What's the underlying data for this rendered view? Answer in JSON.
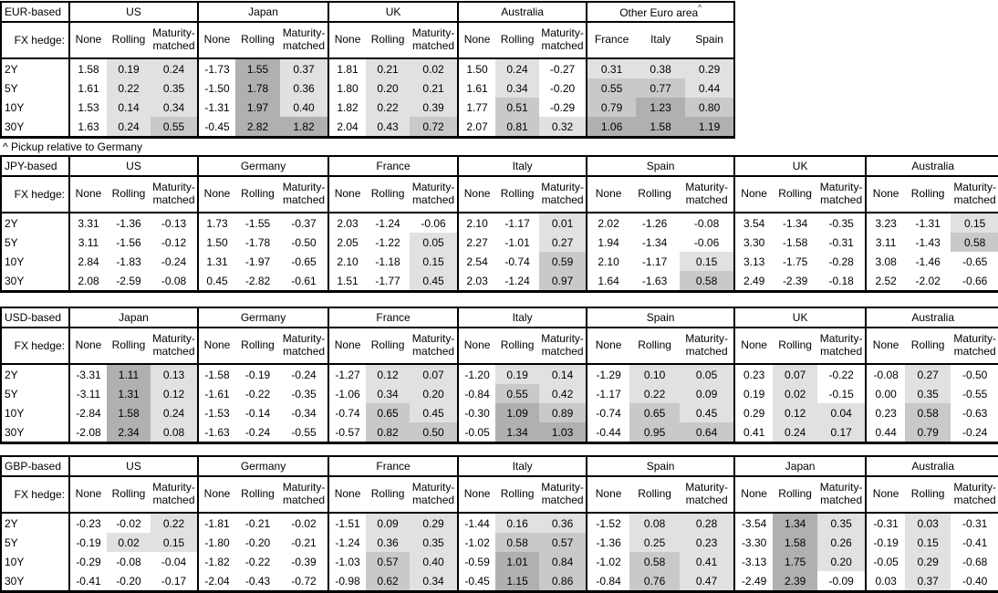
{
  "footnote": "^ Pickup relative to Germany",
  "fx_hedge_label": "FX hedge:",
  "hedge_cols": [
    "None",
    "Rolling",
    "Maturity-matched"
  ],
  "tenors": [
    "2Y",
    "5Y",
    "10Y",
    "30Y"
  ],
  "heat_colors": {
    "none": "#ffffff",
    "low": "#e1e1e1",
    "mid": "#c9c9c9",
    "high": "#b0b0b0"
  },
  "tables": [
    {
      "label": "EUR-based",
      "groups": [
        {
          "name": "US",
          "rows": [
            [
              1.58,
              0.19,
              0.24
            ],
            [
              1.61,
              0.22,
              0.35
            ],
            [
              1.53,
              0.14,
              0.34
            ],
            [
              1.63,
              0.24,
              0.55
            ]
          ]
        },
        {
          "name": "Japan",
          "rows": [
            [
              -1.73,
              1.55,
              0.37
            ],
            [
              -1.5,
              1.78,
              0.36
            ],
            [
              -1.31,
              1.97,
              0.4
            ],
            [
              -0.45,
              2.82,
              1.82
            ]
          ]
        },
        {
          "name": "UK",
          "rows": [
            [
              1.81,
              0.21,
              0.02
            ],
            [
              1.8,
              0.2,
              0.21
            ],
            [
              1.82,
              0.22,
              0.39
            ],
            [
              2.04,
              0.43,
              0.72
            ]
          ]
        },
        {
          "name": "Australia",
          "rows": [
            [
              1.5,
              0.24,
              -0.27
            ],
            [
              1.61,
              0.34,
              -0.2
            ],
            [
              1.77,
              0.51,
              -0.29
            ],
            [
              2.07,
              0.81,
              0.32
            ]
          ]
        },
        {
          "name": "Other Euro area",
          "sup": "^",
          "cols": [
            "France",
            "Italy",
            "Spain"
          ],
          "shade_all": true,
          "rows": [
            [
              0.31,
              0.38,
              0.29
            ],
            [
              0.55,
              0.77,
              0.44
            ],
            [
              0.79,
              1.23,
              0.8
            ],
            [
              1.06,
              1.58,
              1.19
            ]
          ]
        }
      ]
    },
    {
      "label": "JPY-based",
      "groups": [
        {
          "name": "US",
          "rows": [
            [
              3.31,
              -1.36,
              -0.13
            ],
            [
              3.11,
              -1.56,
              -0.12
            ],
            [
              2.84,
              -1.83,
              -0.24
            ],
            [
              2.08,
              -2.59,
              -0.08
            ]
          ]
        },
        {
          "name": "Germany",
          "rows": [
            [
              1.73,
              -1.55,
              -0.37
            ],
            [
              1.5,
              -1.78,
              -0.5
            ],
            [
              1.31,
              -1.97,
              -0.65
            ],
            [
              0.45,
              -2.82,
              -0.61
            ]
          ]
        },
        {
          "name": "France",
          "rows": [
            [
              2.03,
              -1.24,
              -0.06
            ],
            [
              2.05,
              -1.22,
              0.05
            ],
            [
              2.1,
              -1.18,
              0.15
            ],
            [
              1.51,
              -1.77,
              0.45
            ]
          ]
        },
        {
          "name": "Italy",
          "rows": [
            [
              2.1,
              -1.17,
              0.01
            ],
            [
              2.27,
              -1.01,
              0.27
            ],
            [
              2.54,
              -0.74,
              0.59
            ],
            [
              2.03,
              -1.24,
              0.97
            ]
          ]
        },
        {
          "name": "Spain",
          "rows": [
            [
              2.02,
              -1.26,
              -0.08
            ],
            [
              1.94,
              -1.34,
              -0.06
            ],
            [
              2.1,
              -1.17,
              0.15
            ],
            [
              1.64,
              -1.63,
              0.58
            ]
          ]
        },
        {
          "name": "UK",
          "rows": [
            [
              3.54,
              -1.34,
              -0.35
            ],
            [
              3.3,
              -1.58,
              -0.31
            ],
            [
              3.13,
              -1.75,
              -0.28
            ],
            [
              2.49,
              -2.39,
              -0.18
            ]
          ]
        },
        {
          "name": "Australia",
          "rows": [
            [
              3.23,
              -1.31,
              0.15
            ],
            [
              3.11,
              -1.43,
              0.58
            ],
            [
              3.08,
              -1.46,
              -0.65
            ],
            [
              2.52,
              -2.02,
              -0.66
            ]
          ]
        }
      ]
    },
    {
      "label": "USD-based",
      "groups": [
        {
          "name": "Japan",
          "rows": [
            [
              -3.31,
              1.11,
              0.13
            ],
            [
              -3.11,
              1.31,
              0.12
            ],
            [
              -2.84,
              1.58,
              0.24
            ],
            [
              -2.08,
              2.34,
              0.08
            ]
          ]
        },
        {
          "name": "Germany",
          "rows": [
            [
              -1.58,
              -0.19,
              -0.24
            ],
            [
              -1.61,
              -0.22,
              -0.35
            ],
            [
              -1.53,
              -0.14,
              -0.34
            ],
            [
              -1.63,
              -0.24,
              -0.55
            ]
          ]
        },
        {
          "name": "France",
          "rows": [
            [
              -1.27,
              0.12,
              0.07
            ],
            [
              -1.06,
              0.34,
              0.2
            ],
            [
              -0.74,
              0.65,
              0.45
            ],
            [
              -0.57,
              0.82,
              0.5
            ]
          ]
        },
        {
          "name": "Italy",
          "rows": [
            [
              -1.2,
              0.19,
              0.14
            ],
            [
              -0.84,
              0.55,
              0.42
            ],
            [
              -0.3,
              1.09,
              0.89
            ],
            [
              -0.05,
              1.34,
              1.03
            ]
          ]
        },
        {
          "name": "Spain",
          "rows": [
            [
              -1.29,
              0.1,
              0.05
            ],
            [
              -1.17,
              0.22,
              0.09
            ],
            [
              -0.74,
              0.65,
              0.45
            ],
            [
              -0.44,
              0.95,
              0.64
            ]
          ]
        },
        {
          "name": "UK",
          "rows": [
            [
              0.23,
              0.07,
              -0.22
            ],
            [
              0.19,
              0.02,
              -0.15
            ],
            [
              0.29,
              0.12,
              0.04
            ],
            [
              0.41,
              0.24,
              0.17
            ]
          ]
        },
        {
          "name": "Australia",
          "rows": [
            [
              -0.08,
              0.27,
              -0.5
            ],
            [
              0.0,
              0.35,
              -0.55
            ],
            [
              0.23,
              0.58,
              -0.63
            ],
            [
              0.44,
              0.79,
              -0.24
            ]
          ]
        }
      ]
    },
    {
      "label": "GBP-based",
      "groups": [
        {
          "name": "US",
          "rows": [
            [
              -0.23,
              -0.02,
              0.22
            ],
            [
              -0.19,
              0.02,
              0.15
            ],
            [
              -0.29,
              -0.08,
              -0.04
            ],
            [
              -0.41,
              -0.2,
              -0.17
            ]
          ]
        },
        {
          "name": "Germany",
          "rows": [
            [
              -1.81,
              -0.21,
              -0.02
            ],
            [
              -1.8,
              -0.2,
              -0.21
            ],
            [
              -1.82,
              -0.22,
              -0.39
            ],
            [
              -2.04,
              -0.43,
              -0.72
            ]
          ]
        },
        {
          "name": "France",
          "rows": [
            [
              -1.51,
              0.09,
              0.29
            ],
            [
              -1.24,
              0.36,
              0.35
            ],
            [
              -1.03,
              0.57,
              0.4
            ],
            [
              -0.98,
              0.62,
              0.34
            ]
          ]
        },
        {
          "name": "Italy",
          "rows": [
            [
              -1.44,
              0.16,
              0.36
            ],
            [
              -1.02,
              0.58,
              0.57
            ],
            [
              -0.59,
              1.01,
              0.84
            ],
            [
              -0.45,
              1.15,
              0.86
            ]
          ]
        },
        {
          "name": "Spain",
          "rows": [
            [
              -1.52,
              0.08,
              0.28
            ],
            [
              -1.36,
              0.25,
              0.23
            ],
            [
              -1.02,
              0.58,
              0.41
            ],
            [
              -0.84,
              0.76,
              0.47
            ]
          ]
        },
        {
          "name": "Japan",
          "rows": [
            [
              -3.54,
              1.34,
              0.35
            ],
            [
              -3.3,
              1.58,
              0.26
            ],
            [
              -3.13,
              1.75,
              0.2
            ],
            [
              -2.49,
              2.39,
              -0.09
            ]
          ]
        },
        {
          "name": "Australia",
          "rows": [
            [
              -0.31,
              0.03,
              -0.31
            ],
            [
              -0.19,
              0.15,
              -0.41
            ],
            [
              -0.05,
              0.29,
              -0.68
            ],
            [
              0.03,
              0.37,
              -0.4
            ]
          ]
        }
      ]
    }
  ]
}
